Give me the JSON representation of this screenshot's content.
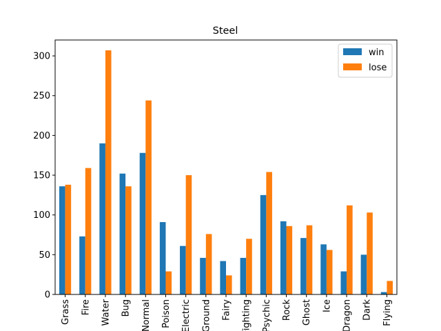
{
  "chart_data": {
    "type": "bar",
    "title": "Steel",
    "xlabel": "",
    "ylabel": "",
    "ylim": [
      0,
      320
    ],
    "yticks": [
      0,
      50,
      100,
      150,
      200,
      250,
      300
    ],
    "grid": false,
    "legend_position": "top-right",
    "categories": [
      "Grass",
      "Fire",
      "Water",
      "Bug",
      "Normal",
      "Poison",
      "Electric",
      "Ground",
      "Fairy",
      "Fighting",
      "Psychic",
      "Rock",
      "Ghost",
      "Ice",
      "Dragon",
      "Dark",
      "Flying"
    ],
    "series": [
      {
        "name": "win",
        "color": "#1f77b4",
        "values": [
          136,
          73,
          190,
          152,
          178,
          91,
          61,
          46,
          42,
          46,
          125,
          92,
          71,
          63,
          29,
          50,
          3
        ]
      },
      {
        "name": "lose",
        "color": "#ff7f0e",
        "values": [
          138,
          159,
          307,
          136,
          244,
          29,
          150,
          76,
          24,
          70,
          154,
          86,
          87,
          56,
          112,
          103,
          17
        ]
      }
    ]
  }
}
